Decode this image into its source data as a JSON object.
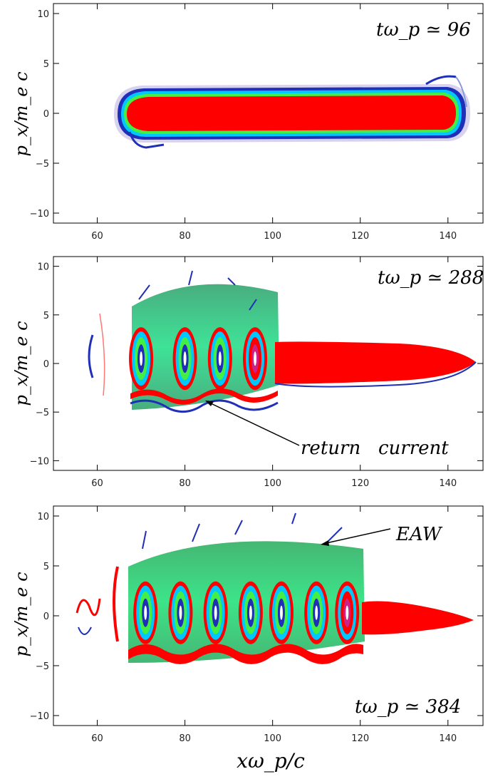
{
  "chart_data": [
    {
      "type": "heatmap",
      "panel": "top",
      "annotation": "tω_p ≃ 96",
      "ylabel": "p_x/m_e c",
      "xlabel": "",
      "xlim": [
        50,
        148
      ],
      "ylim": [
        -11,
        11
      ],
      "xticks": [
        60,
        80,
        100,
        120,
        140
      ],
      "yticks": [
        -10,
        -5,
        0,
        5,
        10
      ],
      "grid": false,
      "colors": [
        "#ffffff",
        "#b9b3dc",
        "#1f2fb8",
        "#00c8ff",
        "#44ee44",
        "#ff0000"
      ]
    },
    {
      "type": "heatmap",
      "panel": "middle",
      "annotation": "tω_p ≃ 288",
      "arrow_label": "return   current",
      "ylabel": "p_x/m_e c",
      "xlabel": "",
      "xlim": [
        50,
        148
      ],
      "ylim": [
        -11,
        11
      ],
      "xticks": [
        60,
        80,
        100,
        120,
        140
      ],
      "yticks": [
        -10,
        -5,
        0,
        5,
        10
      ],
      "grid": false,
      "vortex_x": [
        70,
        80,
        88,
        96
      ]
    },
    {
      "type": "heatmap",
      "panel": "bottom",
      "annotation": "tω_p ≃ 384",
      "arrow_label": "EAW",
      "ylabel": "p_x/m_e c",
      "xlabel": "xω_p/c",
      "xlim": [
        50,
        148
      ],
      "ylim": [
        -11,
        11
      ],
      "xticks": [
        60,
        80,
        100,
        120,
        140
      ],
      "yticks": [
        -10,
        -5,
        0,
        5,
        10
      ],
      "grid": false,
      "vortex_x": [
        71,
        79,
        87,
        95,
        102,
        110,
        117
      ]
    }
  ]
}
